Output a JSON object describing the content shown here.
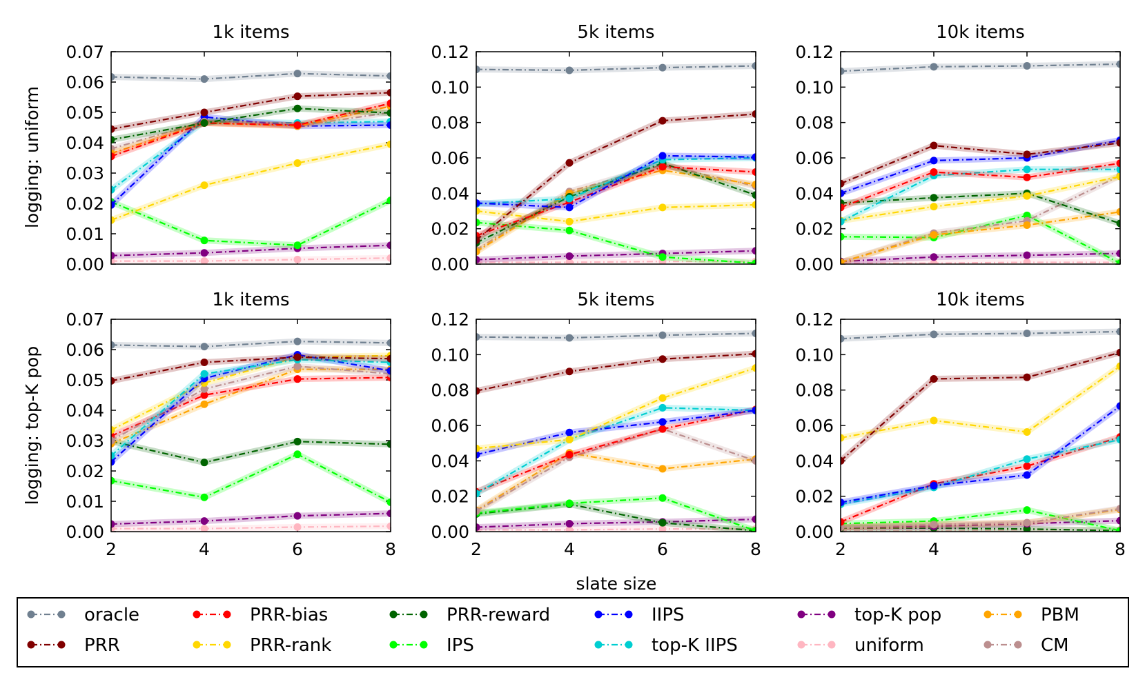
{
  "figure": {
    "xlabel": "slate size",
    "rows": [
      {
        "ylabel": "logging: uniform"
      },
      {
        "ylabel": "logging: top-K pop"
      }
    ],
    "legend": {
      "placement": "bottom",
      "columns": 6
    }
  },
  "series_styles": {
    "oracle": {
      "label": "oracle",
      "color": "#708090"
    },
    "PRR": {
      "label": "PRR",
      "color": "#800000"
    },
    "PRR-bias": {
      "label": "PRR-bias",
      "color": "#ff0000"
    },
    "PRR-rank": {
      "label": "PRR-rank",
      "color": "#ffd700"
    },
    "PRR-reward": {
      "label": "PRR-reward",
      "color": "#006400"
    },
    "IPS": {
      "label": "IPS",
      "color": "#00ff00"
    },
    "IIPS": {
      "label": "IIPS",
      "color": "#0000ff"
    },
    "top-K IIPS": {
      "label": "top-K IIPS",
      "color": "#00ced1"
    },
    "top-K pop": {
      "label": "top-K pop",
      "color": "#800080"
    },
    "uniform": {
      "label": "uniform",
      "color": "#ffb6c1"
    },
    "PBM": {
      "label": "PBM",
      "color": "#ffa500"
    },
    "CM": {
      "label": "CM",
      "color": "#bc8f8f"
    }
  },
  "legend_order": [
    "oracle",
    "PRR-bias",
    "PRR-reward",
    "IIPS",
    "top-K pop",
    "PBM",
    "PRR",
    "PRR-rank",
    "IPS",
    "top-K IIPS",
    "uniform",
    "CM"
  ],
  "chart_data": [
    {
      "type": "line",
      "row": 0,
      "col": 0,
      "title": "1k items",
      "x": [
        2,
        4,
        6,
        8
      ],
      "xlim": [
        2,
        8
      ],
      "xticks": [
        "2",
        "4",
        "6",
        "8"
      ],
      "ylim": [
        0,
        0.07
      ],
      "yticks": [
        "0.00",
        "0.01",
        "0.02",
        "0.03",
        "0.04",
        "0.05",
        "0.06",
        "0.07"
      ],
      "series": [
        {
          "name": "uniform",
          "values": [
            0.001,
            0.001,
            0.0015,
            0.002
          ]
        },
        {
          "name": "top-K pop",
          "values": [
            0.0028,
            0.0037,
            0.0052,
            0.0062
          ]
        },
        {
          "name": "IPS",
          "values": [
            0.0205,
            0.0078,
            0.0062,
            0.021
          ]
        },
        {
          "name": "PRR-rank",
          "values": [
            0.0145,
            0.026,
            0.0333,
            0.0395
          ]
        },
        {
          "name": "top-K IIPS",
          "values": [
            0.0245,
            0.047,
            0.0465,
            0.047
          ]
        },
        {
          "name": "IIPS",
          "values": [
            0.0195,
            0.0485,
            0.0455,
            0.0458
          ]
        },
        {
          "name": "CM",
          "values": [
            0.038,
            0.047,
            0.0455,
            0.05
          ]
        },
        {
          "name": "PBM",
          "values": [
            0.0365,
            0.0465,
            0.0455,
            0.052
          ]
        },
        {
          "name": "PRR-bias",
          "values": [
            0.0355,
            0.0465,
            0.0458,
            0.053
          ]
        },
        {
          "name": "PRR-reward",
          "values": [
            0.041,
            0.0465,
            0.0513,
            0.0498
          ]
        },
        {
          "name": "PRR",
          "values": [
            0.0445,
            0.05,
            0.0553,
            0.0565
          ]
        },
        {
          "name": "oracle",
          "values": [
            0.0617,
            0.061,
            0.0628,
            0.062
          ]
        }
      ]
    },
    {
      "type": "line",
      "row": 0,
      "col": 1,
      "title": "5k items",
      "x": [
        2,
        4,
        6,
        8
      ],
      "xlim": [
        2,
        8
      ],
      "xticks": [
        "2",
        "4",
        "6",
        "8"
      ],
      "ylim": [
        0,
        0.12
      ],
      "yticks": [
        "0.00",
        "0.02",
        "0.04",
        "0.06",
        "0.08",
        "0.10",
        "0.12"
      ],
      "series": [
        {
          "name": "uniform",
          "values": [
            0.001,
            0.001,
            0.0015,
            0.0015
          ]
        },
        {
          "name": "top-K pop",
          "values": [
            0.0025,
            0.0045,
            0.006,
            0.0075
          ]
        },
        {
          "name": "IPS",
          "values": [
            0.0235,
            0.019,
            0.004,
            0.0005
          ]
        },
        {
          "name": "PRR-rank",
          "values": [
            0.03,
            0.024,
            0.032,
            0.0335
          ]
        },
        {
          "name": "CM",
          "values": [
            0.008,
            0.041,
            0.056,
            0.044
          ]
        },
        {
          "name": "PBM",
          "values": [
            0.007,
            0.04,
            0.053,
            0.045
          ]
        },
        {
          "name": "PRR-reward",
          "values": [
            0.012,
            0.038,
            0.057,
            0.039
          ]
        },
        {
          "name": "PRR-bias",
          "values": [
            0.016,
            0.035,
            0.055,
            0.052
          ]
        },
        {
          "name": "top-K IIPS",
          "values": [
            0.034,
            0.037,
            0.059,
            0.06
          ]
        },
        {
          "name": "IIPS",
          "values": [
            0.0345,
            0.032,
            0.0612,
            0.0605
          ]
        },
        {
          "name": "PRR",
          "values": [
            0.0135,
            0.0572,
            0.081,
            0.0848
          ]
        },
        {
          "name": "oracle",
          "values": [
            0.11,
            0.1095,
            0.111,
            0.112
          ]
        }
      ]
    },
    {
      "type": "line",
      "row": 0,
      "col": 2,
      "title": "10k items",
      "x": [
        2,
        4,
        6,
        8
      ],
      "xlim": [
        2,
        8
      ],
      "xticks": [
        "2",
        "4",
        "6",
        "8"
      ],
      "ylim": [
        0,
        0.12
      ],
      "yticks": [
        "0.00",
        "0.02",
        "0.04",
        "0.06",
        "0.08",
        "0.10",
        "0.12"
      ],
      "series": [
        {
          "name": "uniform",
          "values": [
            0.0005,
            0.0005,
            0.001,
            0.001
          ]
        },
        {
          "name": "top-K pop",
          "values": [
            0.0015,
            0.004,
            0.005,
            0.006
          ]
        },
        {
          "name": "IPS",
          "values": [
            0.0155,
            0.015,
            0.0275,
            0.0005
          ]
        },
        {
          "name": "CM",
          "values": [
            0.001,
            0.0175,
            0.0245,
            0.05
          ]
        },
        {
          "name": "PBM",
          "values": [
            0.001,
            0.0165,
            0.022,
            0.0295
          ]
        },
        {
          "name": "PRR-reward",
          "values": [
            0.0345,
            0.0375,
            0.04,
            0.023
          ]
        },
        {
          "name": "PRR-rank",
          "values": [
            0.0245,
            0.0325,
            0.0385,
            0.0495
          ]
        },
        {
          "name": "top-K IIPS",
          "values": [
            0.024,
            0.05,
            0.0535,
            0.0535
          ]
        },
        {
          "name": "PRR-bias",
          "values": [
            0.032,
            0.052,
            0.049,
            0.057
          ]
        },
        {
          "name": "IIPS",
          "values": [
            0.04,
            0.0585,
            0.06,
            0.07
          ]
        },
        {
          "name": "PRR",
          "values": [
            0.0455,
            0.067,
            0.062,
            0.0685
          ]
        },
        {
          "name": "oracle",
          "values": [
            0.109,
            0.1115,
            0.112,
            0.113
          ]
        }
      ]
    },
    {
      "type": "line",
      "row": 1,
      "col": 0,
      "title": "1k items",
      "x": [
        2,
        4,
        6,
        8
      ],
      "xlim": [
        2,
        8
      ],
      "xticks": [
        "2",
        "4",
        "6",
        "8"
      ],
      "ylim": [
        0,
        0.07
      ],
      "yticks": [
        "0.00",
        "0.01",
        "0.02",
        "0.03",
        "0.04",
        "0.05",
        "0.06",
        "0.07"
      ],
      "series": [
        {
          "name": "uniform",
          "values": [
            0.001,
            0.001,
            0.0015,
            0.0018
          ]
        },
        {
          "name": "top-K pop",
          "values": [
            0.0025,
            0.0035,
            0.0052,
            0.006
          ]
        },
        {
          "name": "IPS",
          "values": [
            0.0168,
            0.0113,
            0.0255,
            0.0097
          ]
        },
        {
          "name": "PRR-reward",
          "values": [
            0.0298,
            0.0228,
            0.0297,
            0.0288
          ]
        },
        {
          "name": "PBM",
          "values": [
            0.029,
            0.042,
            0.0535,
            0.0535
          ]
        },
        {
          "name": "PRR-bias",
          "values": [
            0.0315,
            0.045,
            0.0503,
            0.0508
          ]
        },
        {
          "name": "CM",
          "values": [
            0.03,
            0.047,
            0.0545,
            0.052
          ]
        },
        {
          "name": "PRR-rank",
          "values": [
            0.0335,
            0.049,
            0.0575,
            0.058
          ]
        },
        {
          "name": "IIPS",
          "values": [
            0.023,
            0.0505,
            0.0583,
            0.053
          ]
        },
        {
          "name": "top-K IIPS",
          "values": [
            0.025,
            0.052,
            0.0567,
            0.0558
          ]
        },
        {
          "name": "PRR",
          "values": [
            0.0497,
            0.0558,
            0.0575,
            0.057
          ]
        },
        {
          "name": "oracle",
          "values": [
            0.0615,
            0.061,
            0.0627,
            0.0622
          ]
        }
      ]
    },
    {
      "type": "line",
      "row": 1,
      "col": 1,
      "title": "5k items",
      "x": [
        2,
        4,
        6,
        8
      ],
      "xlim": [
        2,
        8
      ],
      "xticks": [
        "2",
        "4",
        "6",
        "8"
      ],
      "ylim": [
        0,
        0.12
      ],
      "yticks": [
        "0.00",
        "0.02",
        "0.04",
        "0.06",
        "0.08",
        "0.10",
        "0.12"
      ],
      "series": [
        {
          "name": "uniform",
          "values": [
            0.001,
            0.001,
            0.0015,
            0.0015
          ]
        },
        {
          "name": "top-K pop",
          "values": [
            0.0025,
            0.0045,
            0.0055,
            0.007
          ]
        },
        {
          "name": "PRR-reward",
          "values": [
            0.01,
            0.0155,
            0.005,
            0.0005
          ]
        },
        {
          "name": "IPS",
          "values": [
            0.0105,
            0.016,
            0.019,
            0.0005
          ]
        },
        {
          "name": "PBM",
          "values": [
            0.012,
            0.0445,
            0.0355,
            0.041
          ]
        },
        {
          "name": "CM",
          "values": [
            0.0115,
            0.042,
            0.058,
            0.04
          ]
        },
        {
          "name": "PRR-bias",
          "values": [
            0.0225,
            0.0435,
            0.058,
            0.069
          ]
        },
        {
          "name": "top-K IIPS",
          "values": [
            0.0215,
            0.052,
            0.07,
            0.0685
          ]
        },
        {
          "name": "IIPS",
          "values": [
            0.0435,
            0.056,
            0.062,
            0.0685
          ]
        },
        {
          "name": "PRR-rank",
          "values": [
            0.047,
            0.052,
            0.0755,
            0.0925
          ]
        },
        {
          "name": "PRR",
          "values": [
            0.0795,
            0.0905,
            0.0975,
            0.1005
          ]
        },
        {
          "name": "oracle",
          "values": [
            0.11,
            0.1095,
            0.111,
            0.112
          ]
        }
      ]
    },
    {
      "type": "line",
      "row": 1,
      "col": 2,
      "title": "10k items",
      "x": [
        2,
        4,
        6,
        8
      ],
      "xlim": [
        2,
        8
      ],
      "xticks": [
        "2",
        "4",
        "6",
        "8"
      ],
      "ylim": [
        0,
        0.12
      ],
      "yticks": [
        "0.00",
        "0.02",
        "0.04",
        "0.06",
        "0.08",
        "0.10",
        "0.12"
      ],
      "series": [
        {
          "name": "uniform",
          "values": [
            0.0005,
            0.0005,
            0.001,
            0.001
          ]
        },
        {
          "name": "PRR-reward",
          "values": [
            0.002,
            0.002,
            0.0015,
            0.0005
          ]
        },
        {
          "name": "top-K pop",
          "values": [
            0.0025,
            0.003,
            0.0045,
            0.0062
          ]
        },
        {
          "name": "IPS",
          "values": [
            0.0045,
            0.006,
            0.0122,
            0.0005
          ]
        },
        {
          "name": "PBM",
          "values": [
            0.0025,
            0.004,
            0.005,
            0.0125
          ]
        },
        {
          "name": "CM",
          "values": [
            0.0025,
            0.004,
            0.005,
            0.013
          ]
        },
        {
          "name": "PRR-bias",
          "values": [
            0.0055,
            0.027,
            0.037,
            0.0535
          ]
        },
        {
          "name": "top-K IIPS",
          "values": [
            0.0155,
            0.025,
            0.041,
            0.052
          ]
        },
        {
          "name": "IIPS",
          "values": [
            0.0165,
            0.026,
            0.032,
            0.071
          ]
        },
        {
          "name": "PRR-rank",
          "values": [
            0.053,
            0.0628,
            0.0563,
            0.0935
          ]
        },
        {
          "name": "PRR",
          "values": [
            0.04,
            0.0863,
            0.0872,
            0.1012
          ]
        },
        {
          "name": "oracle",
          "values": [
            0.109,
            0.1115,
            0.112,
            0.113
          ]
        }
      ]
    }
  ]
}
